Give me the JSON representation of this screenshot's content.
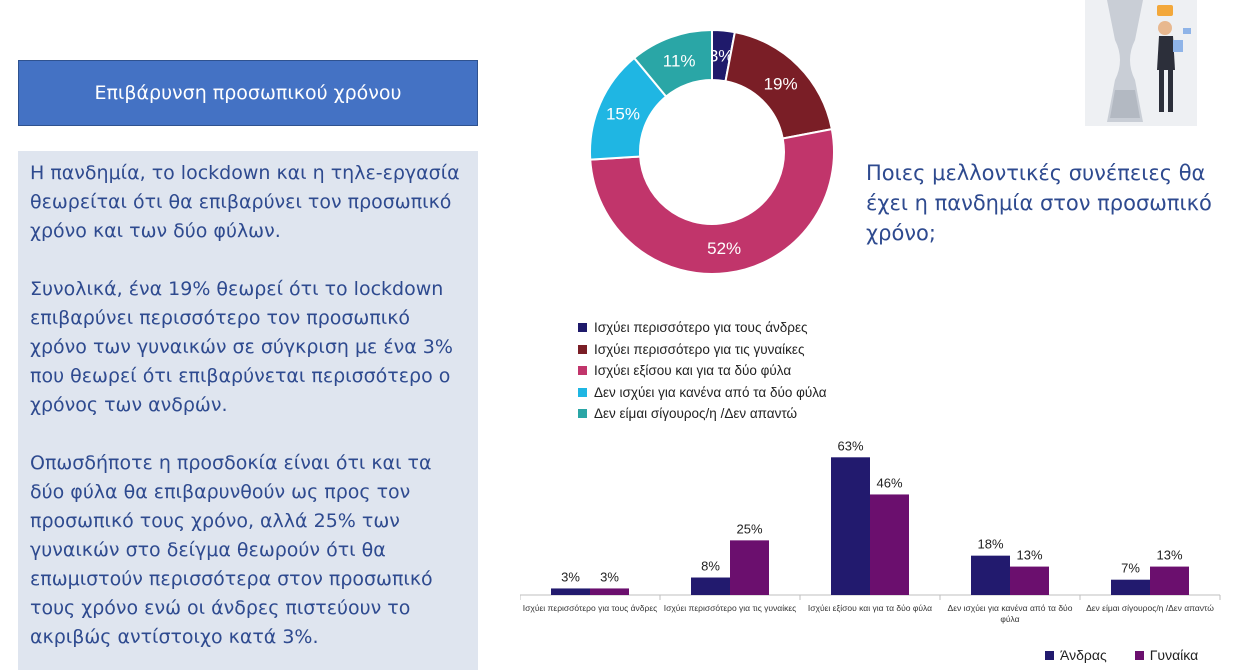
{
  "title": "Επιβάρυνση προσωπικού χρόνου",
  "paragraphs": [
    "Η πανδημία, το lockdown και η τηλε-εργασία θεωρείται ότι θα επιβαρύνει τον προσωπικό χρόνο και των δύο φύλων.",
    "Συνολικά, ένα 19% θεωρεί ότι το lockdown επιβαρύνει περισσότερο τον προσωπικό χρόνο των γυναικών σε σύγκριση με ένα 3% που θεωρεί ότι επιβαρύνεται περισσότερο ο χρόνος των ανδρών.",
    "Οπωσδήποτε η προσδοκία είναι ότι και τα δύο φύλα θα επιβαρυνθούν ως προς τον προσωπικό τους χρόνο, αλλά 25% των γυναικών στο δείγμα θεωρούν ότι θα επωμιστούν περισσότερα στον προσωπικό τους χρόνο ενώ οι άνδρες πιστεύουν το ακριβώς αντίστοιχο κατά 3%."
  ],
  "question": "Ποιες μελλοντικές συνέπειες θα έχει η πανδημία στον προσωπικό χρόνο;",
  "chart_data": [
    {
      "type": "pie",
      "variant": "donut",
      "categories": [
        "Ισχύει περισσότερο για τους άνδρες",
        "Ισχύει περισσότερο για τις γυναίκες",
        "Ισχύει εξίσου και για τα δύο φύλα",
        "Δεν ισχύει για κανένα από τα δύο φύλα",
        "Δεν είμαι σίγουρος/η /Δεν απαντώ"
      ],
      "values": [
        3,
        19,
        52,
        15,
        11
      ],
      "labels": [
        "3%",
        "19%",
        "52%",
        "15%",
        "11%"
      ],
      "colors": [
        "#1f1a6b",
        "#7a1e26",
        "#c1356b",
        "#1fb6e3",
        "#2aa6a6"
      ],
      "legend_position": "bottom"
    },
    {
      "type": "bar",
      "categories": [
        "Ισχύει περισσότερο για τους άνδρες",
        "Ισχύει περισσότερο για τις γυναίκες",
        "Ισχύει εξίσου και για τα δύο φύλα",
        "Δεν ισχύει για κανένα από τα δύο φύλα",
        "Δεν είμαι σίγουρος/η /Δεν απαντώ"
      ],
      "series": [
        {
          "name": "Άνδρας",
          "values": [
            3,
            8,
            63,
            18,
            7
          ],
          "labels": [
            "3%",
            "8%",
            "63%",
            "18%",
            "7%"
          ],
          "color": "#221a6e"
        },
        {
          "name": "Γυναίκα",
          "values": [
            3,
            25,
            46,
            13,
            13
          ],
          "labels": [
            "3%",
            "25%",
            "46%",
            "13%",
            "13%"
          ],
          "color": "#6b0f6e"
        }
      ],
      "ylim": [
        0,
        70
      ],
      "grid": false,
      "legend_position": "bottom-right"
    }
  ]
}
